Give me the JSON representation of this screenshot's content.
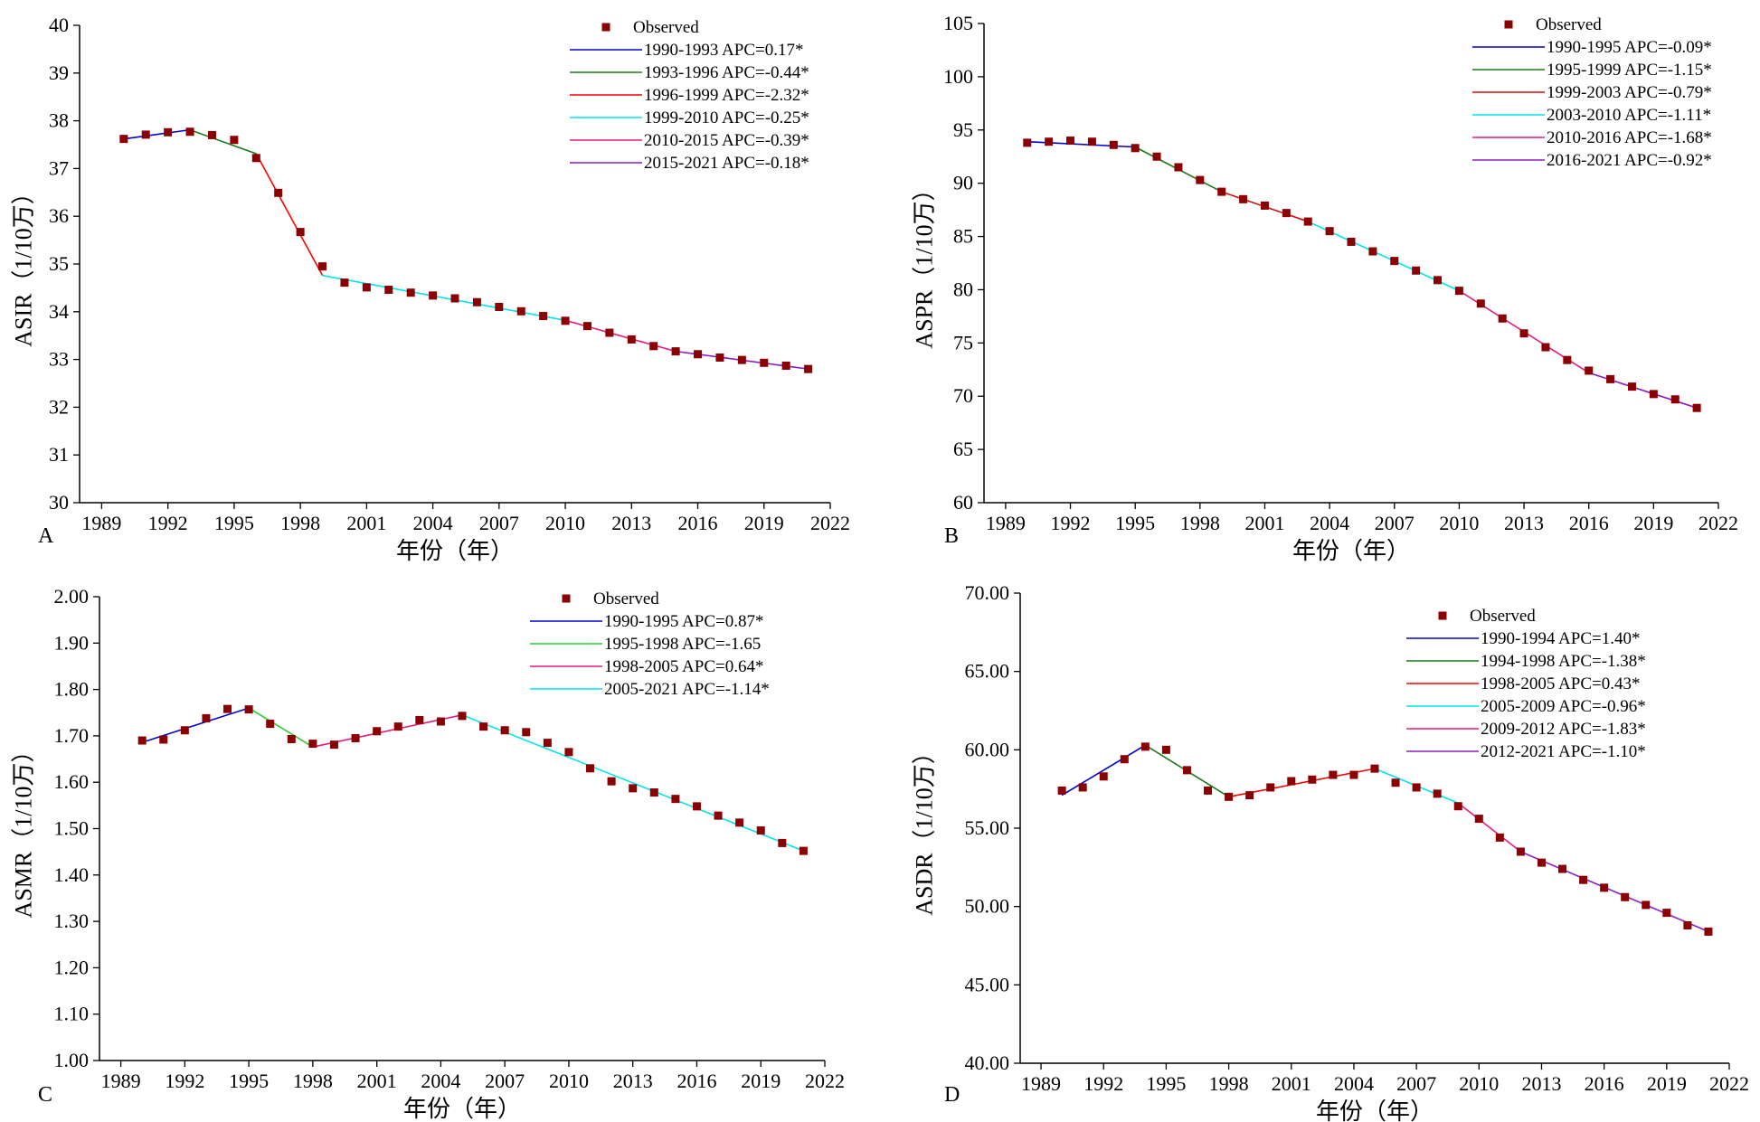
{
  "chart_data": [
    {
      "type": "line",
      "panel_label": "A",
      "xlabel": "年份（年）",
      "ylabel": "ASIR（1/10万）",
      "xlim": [
        1988,
        2022
      ],
      "ylim": [
        30,
        40
      ],
      "xticks": [
        "1989",
        "1992",
        "1995",
        "1998",
        "2001",
        "2004",
        "2007",
        "2010",
        "2013",
        "2016",
        "2019",
        "2022"
      ],
      "yticks": [
        "30",
        "31",
        "32",
        "33",
        "34",
        "35",
        "36",
        "37",
        "38",
        "39",
        "40"
      ],
      "legend_position": "top-right",
      "observed_label": "Observed",
      "observed_color": "#8b0000",
      "x": [
        1990,
        1991,
        1992,
        1993,
        1994,
        1995,
        1996,
        1997,
        1998,
        1999,
        2000,
        2001,
        2002,
        2003,
        2004,
        2005,
        2006,
        2007,
        2008,
        2009,
        2010,
        2011,
        2012,
        2013,
        2014,
        2015,
        2016,
        2017,
        2018,
        2019,
        2020,
        2021
      ],
      "observed": [
        37.62,
        37.71,
        37.76,
        37.77,
        37.7,
        37.6,
        37.22,
        36.49,
        35.67,
        34.95,
        34.61,
        34.51,
        34.46,
        34.4,
        34.34,
        34.28,
        34.2,
        34.1,
        34.01,
        33.91,
        33.81,
        33.7,
        33.56,
        33.42,
        33.28,
        33.17,
        33.11,
        33.04,
        32.99,
        32.93,
        32.87,
        32.8
      ],
      "series": [
        {
          "name": "1990-1993 APC=0.17*",
          "color": "#0000cd",
          "x": [
            1990,
            1993
          ],
          "y": [
            37.62,
            37.81
          ]
        },
        {
          "name": "1993-1996 APC=-0.44*",
          "color": "#1b7a1b",
          "x": [
            1993,
            1996
          ],
          "y": [
            37.81,
            37.31
          ]
        },
        {
          "name": "1996-1999 APC=-2.32*",
          "color": "#ff0000",
          "x": [
            1996,
            1999
          ],
          "y": [
            37.31,
            34.76
          ]
        },
        {
          "name": "1999-2010 APC=-0.25*",
          "color": "#00e5ee",
          "x": [
            1999,
            2010
          ],
          "y": [
            34.76,
            33.82
          ]
        },
        {
          "name": "2010-2015 APC=-0.39*",
          "color": "#e6197f",
          "x": [
            2010,
            2015
          ],
          "y": [
            33.82,
            33.17
          ]
        },
        {
          "name": "2015-2021 APC=-0.18*",
          "color": "#8b1fc2",
          "x": [
            2015,
            2021
          ],
          "y": [
            33.17,
            32.8
          ]
        }
      ]
    },
    {
      "type": "line",
      "panel_label": "B",
      "xlabel": "年份（年）",
      "ylabel": "ASPR（1/10万）",
      "xlim": [
        1988,
        2022
      ],
      "ylim": [
        60,
        105
      ],
      "xticks": [
        "1989",
        "1992",
        "1995",
        "1998",
        "2001",
        "2004",
        "2007",
        "2010",
        "2013",
        "2016",
        "2019",
        "2022"
      ],
      "yticks": [
        "60",
        "65",
        "70",
        "75",
        "80",
        "85",
        "90",
        "95",
        "100",
        "105"
      ],
      "legend_position": "top-right",
      "observed_label": "Observed",
      "observed_color": "#8b0000",
      "x": [
        1990,
        1991,
        1992,
        1993,
        1994,
        1995,
        1996,
        1997,
        1998,
        1999,
        2000,
        2001,
        2002,
        2003,
        2004,
        2005,
        2006,
        2007,
        2008,
        2009,
        2010,
        2011,
        2012,
        2013,
        2014,
        2015,
        2016,
        2017,
        2018,
        2019,
        2020,
        2021
      ],
      "observed": [
        93.8,
        93.9,
        94.0,
        93.9,
        93.6,
        93.3,
        92.5,
        91.5,
        90.3,
        89.2,
        88.5,
        87.9,
        87.2,
        86.4,
        85.5,
        84.5,
        83.6,
        82.7,
        81.8,
        80.9,
        79.9,
        78.7,
        77.3,
        75.9,
        74.6,
        73.4,
        72.4,
        71.6,
        70.9,
        70.2,
        69.7,
        68.9
      ],
      "series": [
        {
          "name": "1990-1995 APC=-0.09*",
          "color": "#0000cd",
          "x": [
            1990,
            1995
          ],
          "y": [
            93.9,
            93.4
          ]
        },
        {
          "name": "1995-1999 APC=-1.15*",
          "color": "#1b7a1b",
          "x": [
            1995,
            1999
          ],
          "y": [
            93.4,
            89.2
          ]
        },
        {
          "name": "1999-2003 APC=-0.79*",
          "color": "#cc1010",
          "x": [
            1999,
            2003
          ],
          "y": [
            89.2,
            86.4
          ]
        },
        {
          "name": "2003-2010 APC=-1.11*",
          "color": "#00e5ee",
          "x": [
            2003,
            2010
          ],
          "y": [
            86.4,
            79.9
          ]
        },
        {
          "name": "2010-2016 APC=-1.68*",
          "color": "#e6197f",
          "x": [
            2010,
            2016
          ],
          "y": [
            79.9,
            72.2
          ]
        },
        {
          "name": "2016-2021 APC=-0.92*",
          "color": "#8b1fc2",
          "x": [
            2016,
            2021
          ],
          "y": [
            72.2,
            68.9
          ]
        }
      ]
    },
    {
      "type": "line",
      "panel_label": "C",
      "xlabel": "年份（年）",
      "ylabel": "ASMR（1/10万）",
      "xlim": [
        1988,
        2022
      ],
      "ylim": [
        1.0,
        2.0
      ],
      "xticks": [
        "1989",
        "1992",
        "1995",
        "1998",
        "2001",
        "2004",
        "2007",
        "2010",
        "2013",
        "2016",
        "2019",
        "2022"
      ],
      "yticks": [
        "1.00",
        "1.10",
        "1.20",
        "1.30",
        "1.40",
        "1.50",
        "1.60",
        "1.70",
        "1.80",
        "1.90",
        "2.00"
      ],
      "legend_position": "top-right",
      "observed_label": "Observed",
      "observed_color": "#8b0000",
      "x": [
        1990,
        1991,
        1992,
        1993,
        1994,
        1995,
        1996,
        1997,
        1998,
        1999,
        2000,
        2001,
        2002,
        2003,
        2004,
        2005,
        2006,
        2007,
        2008,
        2009,
        2010,
        2011,
        2012,
        2013,
        2014,
        2015,
        2016,
        2017,
        2018,
        2019,
        2020,
        2021
      ],
      "observed": [
        1.69,
        1.692,
        1.712,
        1.738,
        1.758,
        1.757,
        1.726,
        1.693,
        1.683,
        1.681,
        1.695,
        1.71,
        1.72,
        1.734,
        1.731,
        1.743,
        1.72,
        1.712,
        1.708,
        1.685,
        1.665,
        1.63,
        1.602,
        1.587,
        1.578,
        1.564,
        1.548,
        1.528,
        1.513,
        1.496,
        1.469,
        1.452
      ],
      "series": [
        {
          "name": "1990-1995 APC=0.87*",
          "color": "#0000cd",
          "x": [
            1990,
            1995
          ],
          "y": [
            1.686,
            1.76
          ]
        },
        {
          "name": "1995-1998 APC=-1.65",
          "color": "#2ecc2e",
          "x": [
            1995,
            1998
          ],
          "y": [
            1.76,
            1.676
          ]
        },
        {
          "name": "1998-2005 APC=0.64*",
          "color": "#e6197f",
          "x": [
            1998,
            2005
          ],
          "y": [
            1.676,
            1.745
          ]
        },
        {
          "name": "2005-2021 APC=-1.14*",
          "color": "#00e5ee",
          "x": [
            2005,
            2021
          ],
          "y": [
            1.745,
            1.452
          ]
        }
      ]
    },
    {
      "type": "line",
      "panel_label": "D",
      "xlabel": "年份（年）",
      "ylabel": "ASDR（1/10万）",
      "xlim": [
        1988,
        2022
      ],
      "ylim": [
        40,
        70
      ],
      "xticks": [
        "1989",
        "1992",
        "1995",
        "1998",
        "2001",
        "2004",
        "2007",
        "2010",
        "2013",
        "2016",
        "2019",
        "2022"
      ],
      "yticks": [
        "40.00",
        "45.00",
        "50.00",
        "55.00",
        "60.00",
        "65.00",
        "70.00"
      ],
      "legend_position": "top-right",
      "observed_label": "Observed",
      "observed_color": "#8b0000",
      "x": [
        1990,
        1991,
        1992,
        1993,
        1994,
        1995,
        1996,
        1997,
        1998,
        1999,
        2000,
        2001,
        2002,
        2003,
        2004,
        2005,
        2006,
        2007,
        2008,
        2009,
        2010,
        2011,
        2012,
        2013,
        2014,
        2015,
        2016,
        2017,
        2018,
        2019,
        2020,
        2021
      ],
      "observed": [
        57.4,
        57.6,
        58.3,
        59.4,
        60.2,
        60.0,
        58.7,
        57.4,
        57.0,
        57.1,
        57.6,
        58.0,
        58.1,
        58.4,
        58.4,
        58.8,
        57.9,
        57.6,
        57.2,
        56.4,
        55.6,
        54.4,
        53.5,
        52.8,
        52.4,
        51.7,
        51.2,
        50.6,
        50.1,
        49.6,
        48.8,
        48.4
      ],
      "series": [
        {
          "name": "1990-1994 APC=1.40*",
          "color": "#0000cd",
          "x": [
            1990,
            1994
          ],
          "y": [
            57.1,
            60.3
          ]
        },
        {
          "name": "1994-1998 APC=-1.38*",
          "color": "#1b7a1b",
          "x": [
            1994,
            1998
          ],
          "y": [
            60.3,
            57.0
          ]
        },
        {
          "name": "1998-2005 APC=0.43*",
          "color": "#ff0000",
          "x": [
            1998,
            2005
          ],
          "y": [
            57.0,
            58.8
          ]
        },
        {
          "name": "2005-2009 APC=-0.96*",
          "color": "#00e5ee",
          "x": [
            2005,
            2009
          ],
          "y": [
            58.8,
            56.6
          ]
        },
        {
          "name": "2009-2012 APC=-1.83*",
          "color": "#e6197f",
          "x": [
            2009,
            2012
          ],
          "y": [
            56.6,
            53.5
          ]
        },
        {
          "name": "2012-2021 APC=-1.10*",
          "color": "#8b1fc2",
          "x": [
            2012,
            2021
          ],
          "y": [
            53.5,
            48.4
          ]
        }
      ]
    }
  ]
}
